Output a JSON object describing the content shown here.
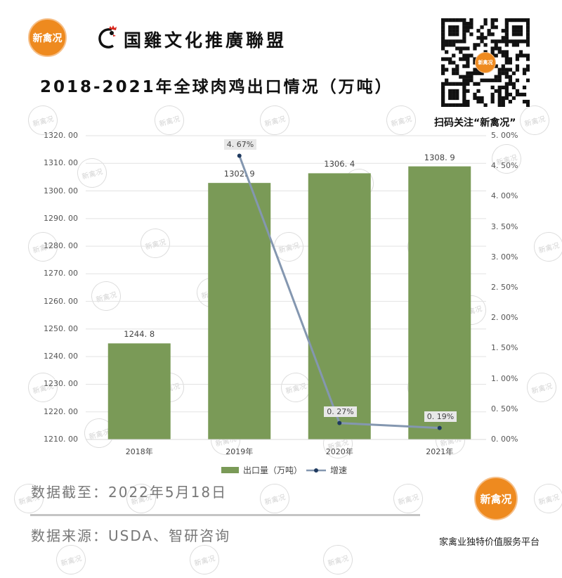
{
  "header": {
    "brand_logo_text": "新禽况",
    "alliance_name": "国雞文化推廣聯盟",
    "title": "2018-2021年全球肉鸡出口情况（万吨）",
    "qr_logo_text": "新禽况",
    "qr_caption": "扫码关注“新禽况”"
  },
  "colors": {
    "bar": "#7a9a57",
    "line": "#8497b0",
    "marker": "#1f3a5f",
    "brand_orange": "#ee8a1f",
    "gridline": "#e2e2e2"
  },
  "chart_data": {
    "type": "bar",
    "title": "2018-2021年全球肉鸡出口情况（万吨）",
    "categories": [
      "2018年",
      "2019年",
      "2020年",
      "2021年"
    ],
    "series": [
      {
        "name": "出口量（万吨）",
        "type": "bar",
        "axis": "left",
        "values": [
          1244.8,
          1302.9,
          1306.4,
          1308.9
        ],
        "labels": [
          "1244.8",
          "1302.9",
          "1306.4",
          "1308.9"
        ]
      },
      {
        "name": "增速",
        "type": "line",
        "axis": "right",
        "values": [
          null,
          4.67,
          0.27,
          0.19
        ],
        "labels": [
          "",
          "4.67%",
          "0.27%",
          "0.19%"
        ]
      }
    ],
    "y_left": {
      "min": 1210,
      "max": 1320,
      "step": 10,
      "ticks": [
        "1320.00",
        "1310.00",
        "1300.00",
        "1290.00",
        "1280.00",
        "1270.00",
        "1260.00",
        "1250.00",
        "1240.00",
        "1230.00",
        "1220.00",
        "1210.00"
      ]
    },
    "y_right": {
      "min": 0,
      "max": 5,
      "step": 0.5,
      "ticks": [
        "5.00%",
        "4.50%",
        "4.00%",
        "3.50%",
        "3.00%",
        "2.50%",
        "2.00%",
        "1.50%",
        "1.00%",
        "0.50%",
        "0.00%"
      ]
    },
    "xlabel": "",
    "ylabel": "",
    "grid": true,
    "legend_position": "bottom",
    "legend": [
      "出口量（万吨）",
      "增速"
    ]
  },
  "footer": {
    "data_cutoff": "数据截至：2022年5月18日",
    "data_source": "数据来源：USDA、智研咨询",
    "logo_text": "新禽况",
    "tagline": "家禽业独特价值服务平台"
  },
  "watermark_text": "新禽况"
}
